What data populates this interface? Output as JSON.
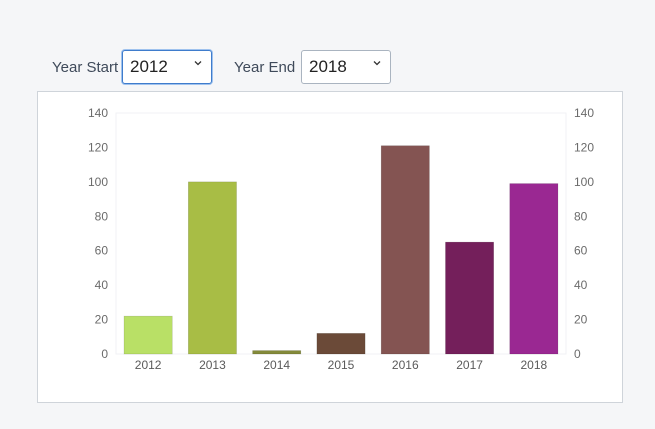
{
  "controls": {
    "year_start_label": "Year Start",
    "year_start_value": "2012",
    "year_end_label": "Year End",
    "year_end_value": "2018"
  },
  "chart_data": {
    "type": "bar",
    "categories": [
      "2012",
      "2013",
      "2014",
      "2015",
      "2016",
      "2017",
      "2018"
    ],
    "values": [
      22,
      100,
      2,
      12,
      121,
      65,
      99
    ],
    "colors": [
      "#b9e066",
      "#a8bd45",
      "#838a3a",
      "#6b4a38",
      "#845452",
      "#741f5b",
      "#9a2892"
    ],
    "ylim": [
      0,
      140
    ],
    "yticks": [
      0,
      20,
      40,
      60,
      80,
      100,
      120,
      140
    ],
    "left_axis": true,
    "right_axis": true,
    "grid": false,
    "title": "",
    "xlabel": "",
    "ylabel": ""
  }
}
